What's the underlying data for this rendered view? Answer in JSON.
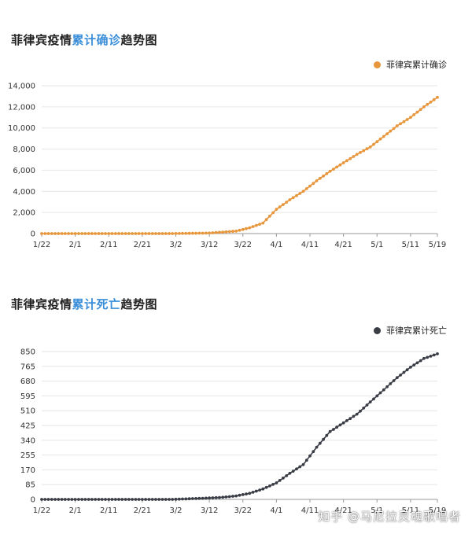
{
  "chart_data": [
    {
      "type": "line",
      "title_prefix": "菲律宾疫情",
      "title_highlight": "累计确诊",
      "title_suffix": "趋势图",
      "legend": "菲律宾累计确诊",
      "color": "#e8963c",
      "legend_position": "top-right",
      "grid": true,
      "ylim": [
        0,
        14000
      ],
      "y_ticks": [
        "0",
        "2,000",
        "4,000",
        "6,000",
        "8,000",
        "10,000",
        "12,000",
        "14,000"
      ],
      "x_ticks": [
        "1/22",
        "2/1",
        "2/11",
        "2/21",
        "3/2",
        "3/12",
        "3/22",
        "4/1",
        "4/11",
        "4/21",
        "5/1",
        "5/11",
        "5/19"
      ],
      "x": [
        "1/22",
        "3/1",
        "3/12",
        "3/16",
        "3/20",
        "3/24",
        "3/28",
        "4/1",
        "4/5",
        "4/9",
        "4/13",
        "4/17",
        "4/21",
        "4/25",
        "4/29",
        "5/3",
        "5/7",
        "5/11",
        "5/15",
        "5/19"
      ],
      "values": [
        0,
        0,
        50,
        140,
        230,
        550,
        1000,
        2300,
        3200,
        4000,
        5000,
        5900,
        6700,
        7500,
        8200,
        9200,
        10200,
        11000,
        12000,
        12900
      ]
    },
    {
      "type": "line",
      "title_prefix": "菲律宾疫情",
      "title_highlight": "累计死亡",
      "title_suffix": "趋势图",
      "legend": "菲律宾累计死亡",
      "color": "#3a3d46",
      "legend_position": "top-right",
      "grid": true,
      "ylim": [
        0,
        850
      ],
      "y_ticks": [
        "0",
        "85",
        "170",
        "255",
        "340",
        "425",
        "510",
        "595",
        "680",
        "765",
        "850"
      ],
      "x_ticks": [
        "1/22",
        "2/1",
        "2/11",
        "2/21",
        "3/2",
        "3/12",
        "3/22",
        "4/1",
        "4/11",
        "4/21",
        "5/1",
        "5/11",
        "5/19"
      ],
      "x": [
        "1/22",
        "3/1",
        "3/12",
        "3/16",
        "3/20",
        "3/24",
        "3/28",
        "4/1",
        "4/5",
        "4/9",
        "4/13",
        "4/17",
        "4/21",
        "4/25",
        "4/29",
        "5/3",
        "5/7",
        "5/11",
        "5/15",
        "5/19"
      ],
      "values": [
        0,
        0,
        8,
        12,
        20,
        35,
        60,
        95,
        150,
        200,
        300,
        390,
        440,
        490,
        560,
        630,
        700,
        760,
        810,
        837
      ]
    }
  ],
  "watermark": "知乎 @马尼拉灵魂歌唱者"
}
